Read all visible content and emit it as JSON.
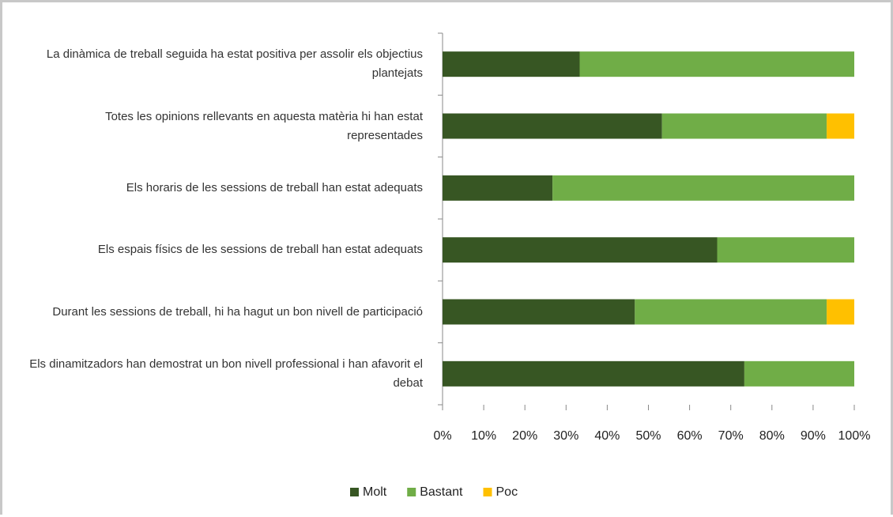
{
  "chart_data": {
    "type": "stacked_bar_horizontal",
    "categories": [
      "La dinàmica de treball seguida ha estat positiva per assolir els objectius plantejats",
      "Totes les opinions rellevants en aquesta matèria hi han estat representades",
      "Els horaris de les sessions de treball han estat adequats",
      "Els espais físics de les sessions de treball han estat adequats",
      "Durant les sessions de treball, hi ha hagut un bon nivell de participació",
      "Els dinamitzadors han demostrat un bon nivell professional i han afavorit el debat"
    ],
    "series": [
      {
        "name": "Molt",
        "color": "#375623",
        "values": [
          33.3,
          53.3,
          26.7,
          66.7,
          46.7,
          73.3
        ]
      },
      {
        "name": "Bastant",
        "color": "#70ad47",
        "values": [
          66.7,
          40,
          73.3,
          33.3,
          46.6,
          26.7
        ]
      },
      {
        "name": "Poc",
        "color": "#ffc000",
        "values": [
          0,
          6.7,
          0,
          0,
          6.7,
          0
        ]
      }
    ],
    "xlim": [
      0,
      100
    ],
    "xticks": [
      {
        "value": 0,
        "label": "0%"
      },
      {
        "value": 10,
        "label": "10%"
      },
      {
        "value": 20,
        "label": "20%"
      },
      {
        "value": 30,
        "label": "30%"
      },
      {
        "value": 40,
        "label": "40%"
      },
      {
        "value": 50,
        "label": "50%"
      },
      {
        "value": 60,
        "label": "60%"
      },
      {
        "value": 70,
        "label": "70%"
      },
      {
        "value": 80,
        "label": "80%"
      },
      {
        "value": 90,
        "label": "90%"
      },
      {
        "value": 100,
        "label": "100%"
      }
    ],
    "legend": "bottom"
  }
}
